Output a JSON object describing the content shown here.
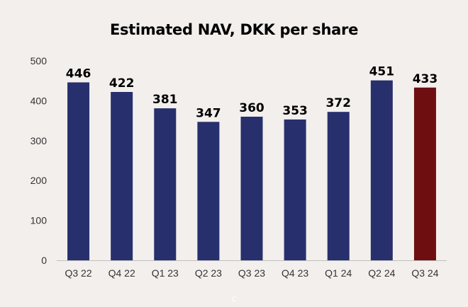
{
  "chart_data": {
    "type": "bar",
    "title": "Estimated NAV, DKK per share",
    "xlabel": "",
    "ylabel": "",
    "categories": [
      "Q3 22",
      "Q4 22",
      "Q1 23",
      "Q2 23",
      "Q3 23",
      "Q4 23",
      "Q1 24",
      "Q2 24",
      "Q3 24"
    ],
    "values": [
      446,
      422,
      381,
      347,
      360,
      353,
      372,
      451,
      433
    ],
    "ylim": [
      0,
      500
    ],
    "yticks": [
      0,
      100,
      200,
      300,
      400,
      500
    ],
    "grid": false,
    "legend": "none",
    "colors": {
      "default_bar": "#27306d",
      "highlight_bar": "#6f0e10",
      "axis": "#bfbfbf"
    },
    "highlight_index": 8
  },
  "footer_mark": "C"
}
